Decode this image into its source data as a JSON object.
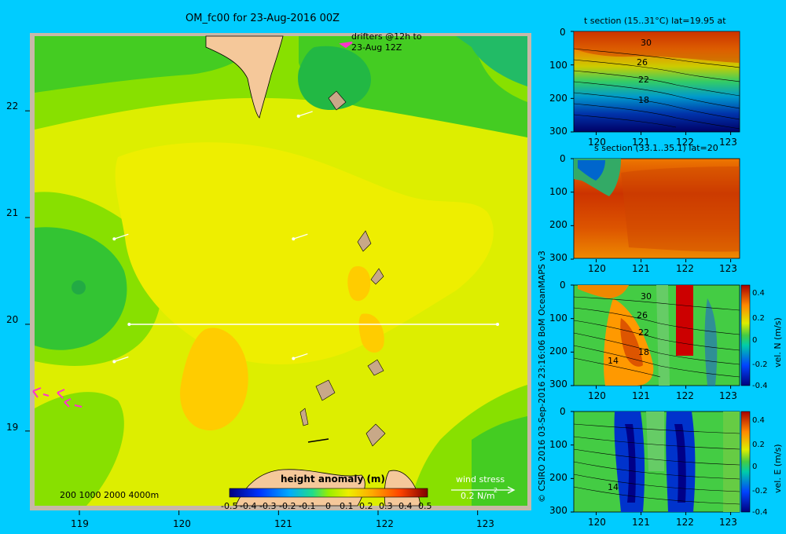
{
  "chart_data": [
    {
      "type": "heatmap",
      "title": "OM_fc00 for 23-Aug-2016 00Z",
      "xlabel": "",
      "ylabel": "",
      "x_ticks": [
        "119",
        "120",
        "121",
        "122",
        "123"
      ],
      "y_ticks": [
        "22",
        "21",
        "20",
        "19"
      ],
      "xlim": [
        118.55,
        123.5
      ],
      "ylim": [
        18.3,
        22.7
      ],
      "colorbar_label": "height anomaly (m)",
      "colorbar_ticks": [
        "-0.5",
        "-0.4",
        "-0.3",
        "-0.2",
        "-0.1",
        "0",
        "0.1",
        "0.2",
        "0.3",
        "0.4",
        "0.5"
      ],
      "colorbar_range": [
        -0.5,
        0.5
      ],
      "depth_legend": "200  1000  2000  4000m",
      "annotation_drifters": [
        "drifters @12h to",
        "23-Aug 12Z"
      ],
      "wind_stress_label": "wind stress",
      "wind_stress_scale": "0.2 N/m",
      "wind_stress_exp": "2",
      "section_line": {
        "lat": 20,
        "lon_start": 119.5,
        "lon_end": 123.2
      },
      "wind_vectors": [
        {
          "lon": 121.2,
          "lat": 21.95
        },
        {
          "lon": 119.35,
          "lat": 20.8
        },
        {
          "lon": 121.15,
          "lat": 20.8
        },
        {
          "lon": 119.35,
          "lat": 19.65
        },
        {
          "lon": 121.15,
          "lat": 19.68
        }
      ]
    },
    {
      "type": "heatmap",
      "title": "t section (15..31°C) lat=19.95 at",
      "x_ticks": [
        "120",
        "121",
        "122",
        "123"
      ],
      "y_ticks": [
        "0",
        "100",
        "200",
        "300"
      ],
      "xlim": [
        119.5,
        123.2
      ],
      "ylim": [
        300,
        0
      ],
      "contour_labels": [
        "30",
        "26",
        "22",
        "18"
      ]
    },
    {
      "type": "heatmap",
      "title": "s section (33.1..35.1) lat=20",
      "x_ticks": [
        "120",
        "121",
        "122",
        "123"
      ],
      "y_ticks": [
        "0",
        "100",
        "200",
        "300"
      ],
      "xlim": [
        119.5,
        123.2
      ],
      "ylim": [
        300,
        0
      ]
    },
    {
      "type": "heatmap",
      "title": "",
      "x_ticks": [
        "120",
        "121",
        "122",
        "123"
      ],
      "y_ticks": [
        "0",
        "100",
        "200",
        "300"
      ],
      "xlim": [
        119.5,
        123.2
      ],
      "ylim": [
        300,
        0
      ],
      "contour_labels": [
        "30",
        "26",
        "22",
        "18",
        "14"
      ],
      "colorbar_label": "vel. N (m/s)",
      "colorbar_ticks": [
        "0.4",
        "0.2",
        "0",
        "-0.2",
        "-0.4"
      ],
      "colorbar_range": [
        -0.4,
        0.4
      ]
    },
    {
      "type": "heatmap",
      "title": "",
      "x_ticks": [
        "120",
        "121",
        "122",
        "123"
      ],
      "y_ticks": [
        "0",
        "100",
        "200",
        "300"
      ],
      "xlim": [
        119.5,
        123.2
      ],
      "ylim": [
        300,
        0
      ],
      "contour_labels": [
        "14"
      ],
      "colorbar_label": "vel. E (m/s)",
      "colorbar_ticks": [
        "0.4",
        "0.2",
        "0",
        "-0.2",
        "-0.4"
      ],
      "colorbar_range": [
        -0.4,
        0.4
      ]
    }
  ],
  "credit": "© CSIRO 2016   03-Sep-2016 23:16:06 BoM OceanMAPS v3"
}
